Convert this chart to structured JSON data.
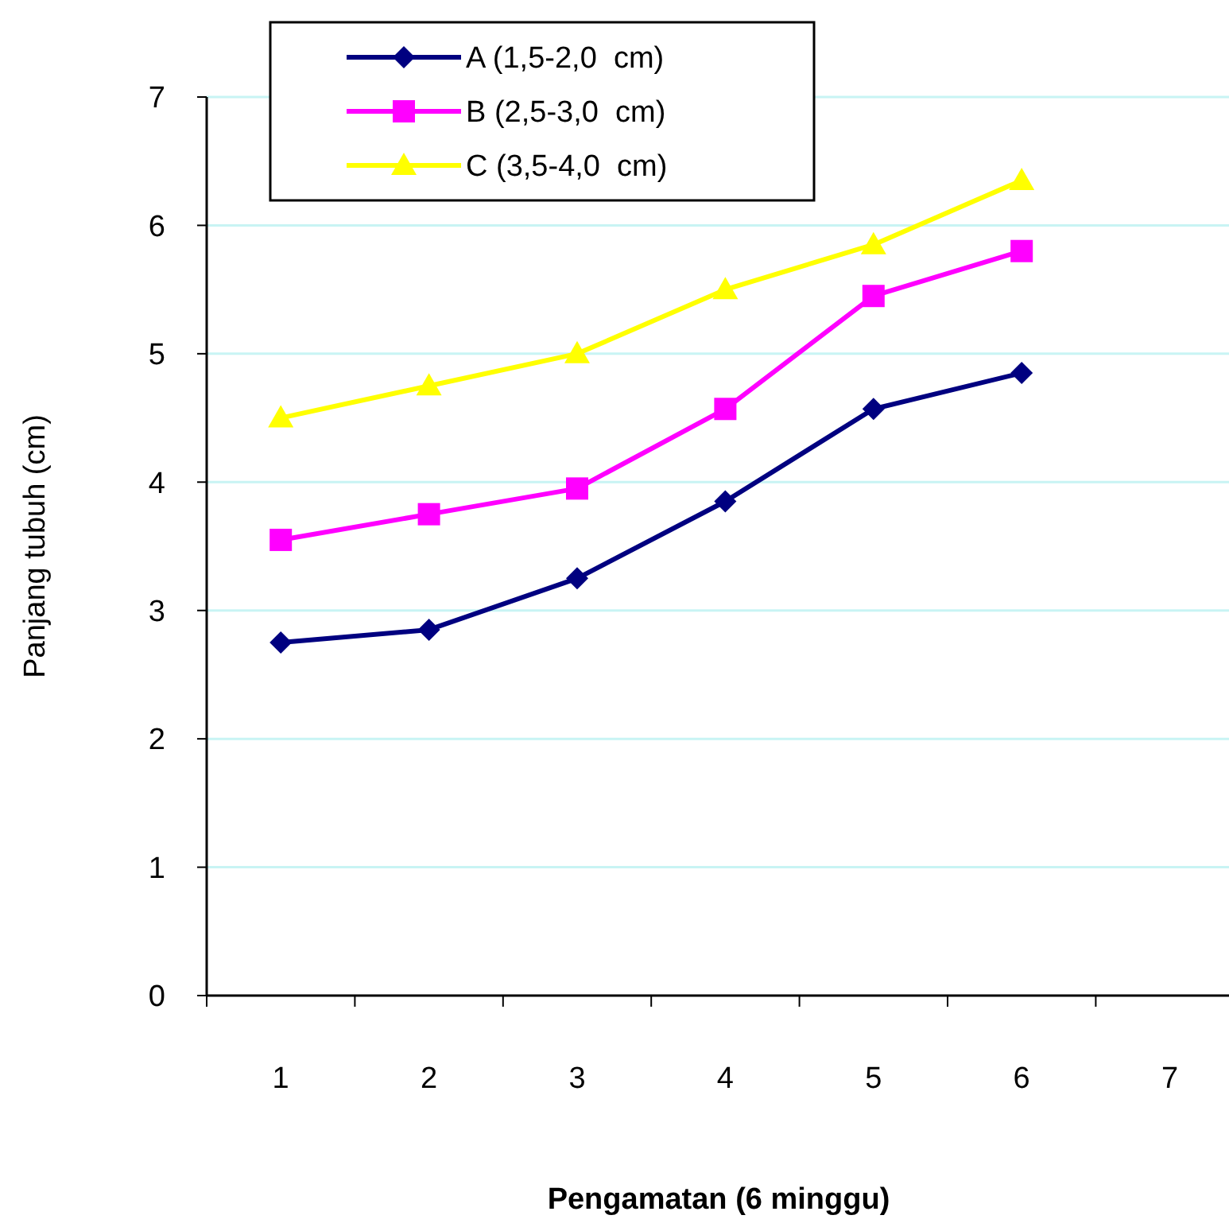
{
  "chart_data": {
    "type": "line",
    "xlabel": "Pengamatan (6 minggu)",
    "ylabel": "Panjang tubuh (cm)",
    "categories": [
      "1",
      "2",
      "3",
      "4",
      "5",
      "6",
      "7"
    ],
    "series": [
      {
        "name": "A (1,5-2,0  cm)",
        "color": "#000080",
        "marker": "diamond",
        "values": [
          2.75,
          2.85,
          3.25,
          3.85,
          4.57,
          4.85,
          null
        ]
      },
      {
        "name": "B (2,5-3,0  cm)",
        "color": "#ff00ff",
        "marker": "square",
        "values": [
          3.55,
          3.75,
          3.95,
          4.57,
          5.45,
          5.8,
          null
        ]
      },
      {
        "name": "C (3,5-4,0  cm)",
        "color": "#ffff00",
        "marker": "triangle",
        "values": [
          4.5,
          4.75,
          5.0,
          5.5,
          5.85,
          6.35,
          null
        ]
      }
    ],
    "ylim": [
      0,
      7
    ],
    "yticks": [
      0,
      1,
      2,
      3,
      4,
      5,
      6,
      7
    ],
    "grid": "y",
    "legend": "top left",
    "line_style": "solid"
  }
}
